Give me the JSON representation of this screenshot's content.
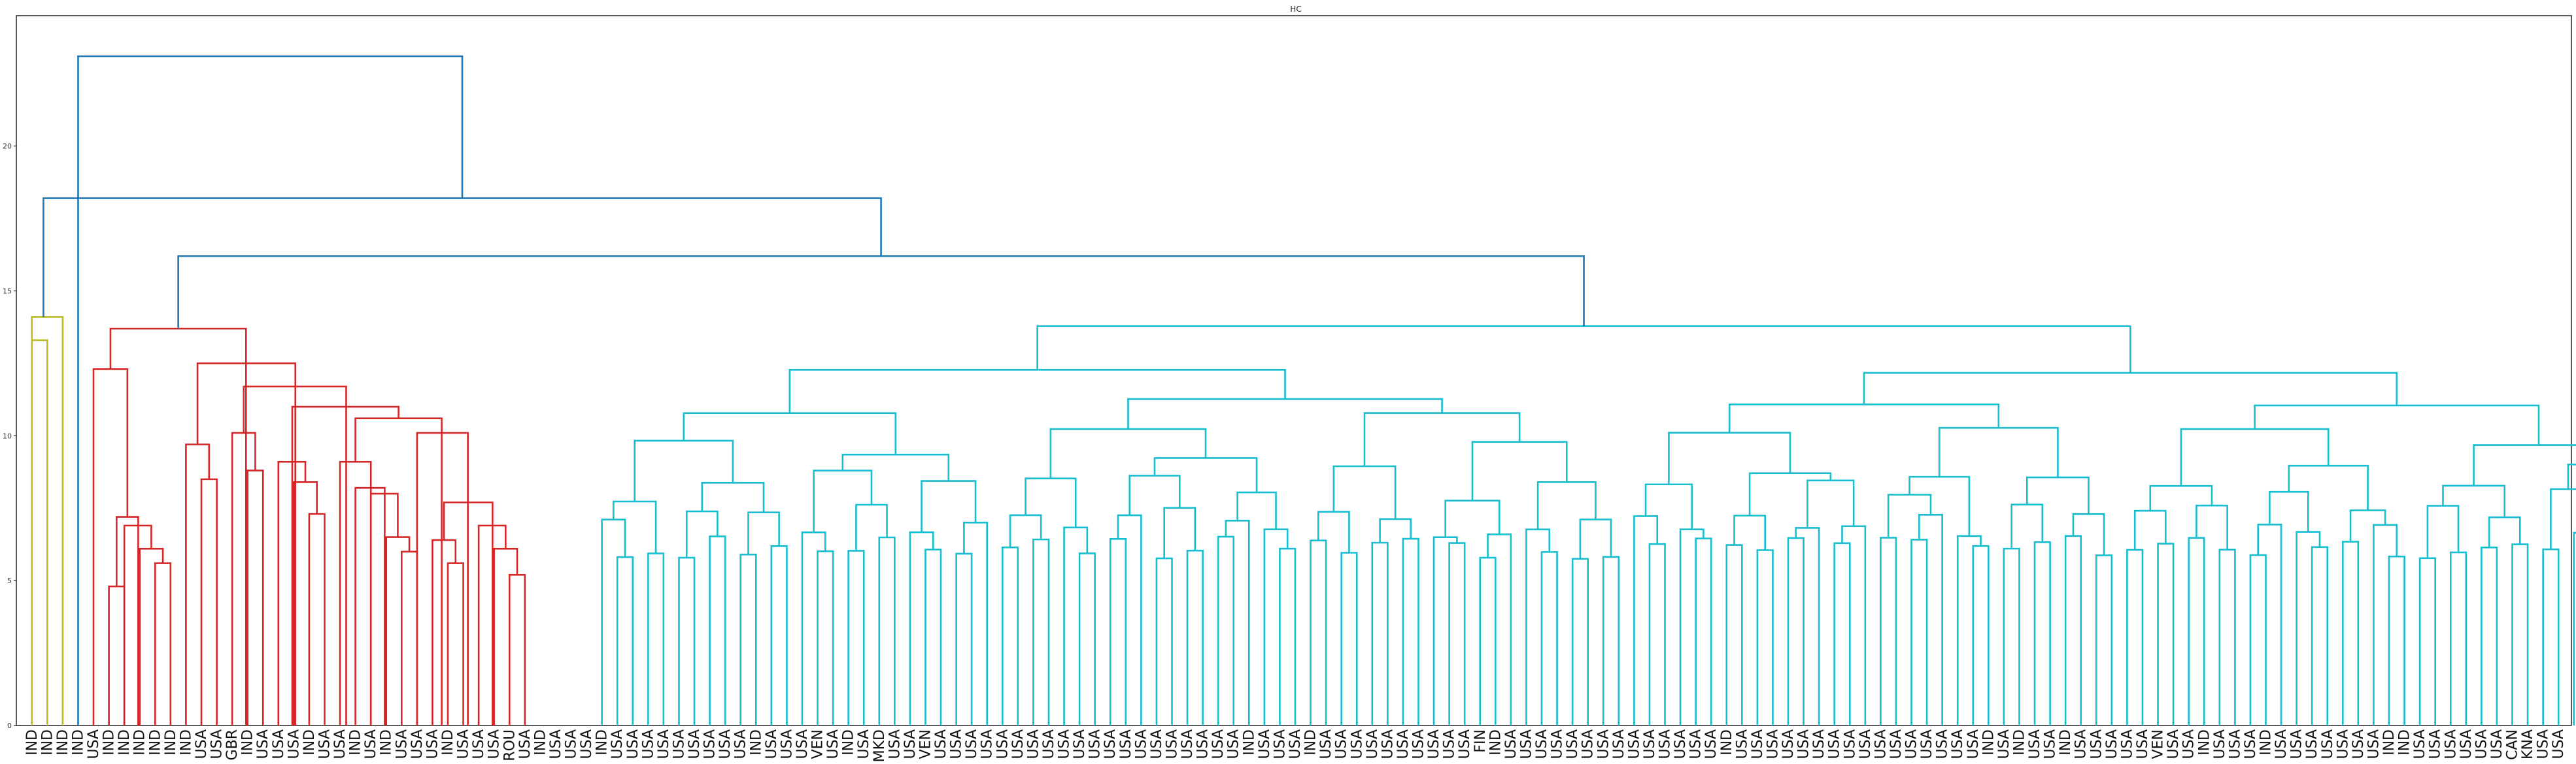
{
  "chart_data": {
    "type": "dendrogram",
    "title": "HC",
    "xlabel": "",
    "ylabel": "",
    "ylim": [
      0,
      24.5
    ],
    "yticks": [
      0,
      5,
      10,
      15,
      20
    ],
    "grid": false,
    "leaf_labels": [
      "IND",
      "IND",
      "IND",
      "IND",
      "USA",
      "IND",
      "IND",
      "IND",
      "IND",
      "IND",
      "IND",
      "USA",
      "USA",
      "GBR",
      "IND",
      "USA",
      "USA",
      "USA",
      "IND",
      "USA",
      "USA",
      "IND",
      "USA",
      "IND",
      "USA",
      "USA",
      "USA",
      "IND",
      "USA",
      "USA",
      "USA",
      "ROU",
      "USA",
      "IND",
      "USA",
      "USA",
      "USA",
      "IND",
      "USA",
      "USA",
      "USA",
      "USA",
      "USA",
      "USA",
      "USA",
      "USA",
      "USA",
      "IND",
      "USA",
      "USA",
      "USA",
      "VEN",
      "USA",
      "IND",
      "USA",
      "MKD",
      "USA",
      "USA",
      "VEN",
      "USA",
      "USA",
      "USA",
      "USA",
      "USA",
      "USA",
      "USA",
      "USA",
      "USA",
      "USA",
      "USA",
      "USA",
      "USA",
      "USA",
      "USA",
      "USA",
      "USA",
      "USA",
      "USA",
      "USA",
      "IND",
      "USA",
      "USA",
      "USA",
      "IND",
      "USA",
      "USA",
      "USA",
      "USA",
      "USA",
      "USA",
      "USA",
      "USA",
      "USA",
      "USA",
      "FIN",
      "IND",
      "USA",
      "USA",
      "USA",
      "USA",
      "USA",
      "USA",
      "USA",
      "USA",
      "USA",
      "USA",
      "USA",
      "USA",
      "USA",
      "USA",
      "IND",
      "USA",
      "USA",
      "USA",
      "USA",
      "USA",
      "USA",
      "USA",
      "USA",
      "USA",
      "USA",
      "USA",
      "USA",
      "USA",
      "USA",
      "USA",
      "USA",
      "IND",
      "USA",
      "IND",
      "USA",
      "USA",
      "IND",
      "USA",
      "USA",
      "USA",
      "USA",
      "USA",
      "VEN",
      "USA",
      "USA",
      "IND",
      "USA",
      "USA",
      "USA",
      "IND",
      "USA",
      "USA",
      "USA",
      "USA",
      "USA",
      "USA",
      "USA",
      "IND",
      "IND",
      "USA",
      "USA",
      "USA",
      "USA",
      "USA",
      "USA",
      "CAN",
      "KNA",
      "USA",
      "USA"
    ],
    "clusters": [
      {
        "name": "",
        "color": "#bcbd22",
        "leaves": [
          1,
          3
        ],
        "root_height": 14.1
      },
      {
        "name": "",
        "color": "#d62728",
        "leaves": [
          4,
          36
        ],
        "root_height": 13.7
      },
      {
        "name": "",
        "color": "#17becf",
        "leaves": [
          37,
          170
        ],
        "root_height": 14.4
      }
    ],
    "links": [
      {
        "l": [
          0,
          1
        ],
        "h": 13.3,
        "c": "y"
      },
      {
        "l": [
          0,
          2
        ],
        "h": 14.1,
        "c": "y"
      },
      {
        "l": [
          5,
          6
        ],
        "h": 4.8,
        "c": "r"
      },
      {
        "l": [
          8,
          9
        ],
        "h": 5.6,
        "c": "r"
      },
      {
        "l": [
          7,
          8.5
        ],
        "h": 6.1,
        "c": "r"
      },
      {
        "l": [
          6,
          7.75
        ],
        "h": 6.9,
        "c": "r"
      },
      {
        "l": [
          5.5,
          6.9
        ],
        "h": 7.2,
        "c": "r"
      },
      {
        "l": [
          4,
          6.2
        ],
        "h": 12.3,
        "c": "r"
      },
      {
        "l": [
          11,
          12
        ],
        "h": 8.5,
        "c": "r"
      },
      {
        "l": [
          10,
          11.5
        ],
        "h": 9.7,
        "c": "r"
      },
      {
        "l": [
          14,
          15
        ],
        "h": 8.8,
        "c": "r"
      },
      {
        "l": [
          13,
          14.5
        ],
        "h": 10.1,
        "c": "r"
      },
      {
        "l": [
          18,
          19
        ],
        "h": 7.3,
        "c": "r"
      },
      {
        "l": [
          17,
          18.5
        ],
        "h": 8.4,
        "c": "r"
      },
      {
        "l": [
          16,
          17.75
        ],
        "h": 9.1,
        "c": "r"
      },
      {
        "l": [
          24,
          25
        ],
        "h": 6.0,
        "c": "r"
      },
      {
        "l": [
          23,
          24.5
        ],
        "h": 6.5,
        "c": "r"
      },
      {
        "l": [
          22,
          23.75
        ],
        "h": 8.0,
        "c": "r"
      },
      {
        "l": [
          21,
          22.9
        ],
        "h": 8.2,
        "c": "r"
      },
      {
        "l": [
          20,
          22
        ],
        "h": 9.1,
        "c": "r"
      },
      {
        "l": [
          27,
          28
        ],
        "h": 5.6,
        "c": "r"
      },
      {
        "l": [
          26,
          27.5
        ],
        "h": 6.4,
        "c": "r"
      },
      {
        "l": [
          31,
          32
        ],
        "h": 5.2,
        "c": "r"
      },
      {
        "l": [
          30,
          31.5
        ],
        "h": 6.1,
        "c": "r"
      },
      {
        "l": [
          29,
          30.75
        ],
        "h": 6.9,
        "c": "r"
      },
      {
        "l": [
          26.75,
          29.9
        ],
        "h": 7.7,
        "c": "r"
      },
      {
        "l": [
          25,
          28.3
        ],
        "h": 10.1,
        "c": "r"
      },
      {
        "l": [
          21,
          26.6
        ],
        "h": 10.6,
        "c": "r"
      },
      {
        "l": [
          16.9,
          23.8
        ],
        "h": 11.0,
        "c": "r"
      },
      {
        "l": [
          13.75,
          20.4
        ],
        "h": 11.7,
        "c": "r"
      },
      {
        "l": [
          10.75,
          17.1
        ],
        "h": 12.5,
        "c": "r"
      },
      {
        "l": [
          5.1,
          13.9
        ],
        "h": 13.7,
        "c": "r"
      }
    ],
    "upper_links": [
      {
        "label": "root",
        "h": 23.1
      },
      {
        "label": "",
        "h": 18.2
      },
      {
        "label": "",
        "h": 16.2
      }
    ]
  }
}
